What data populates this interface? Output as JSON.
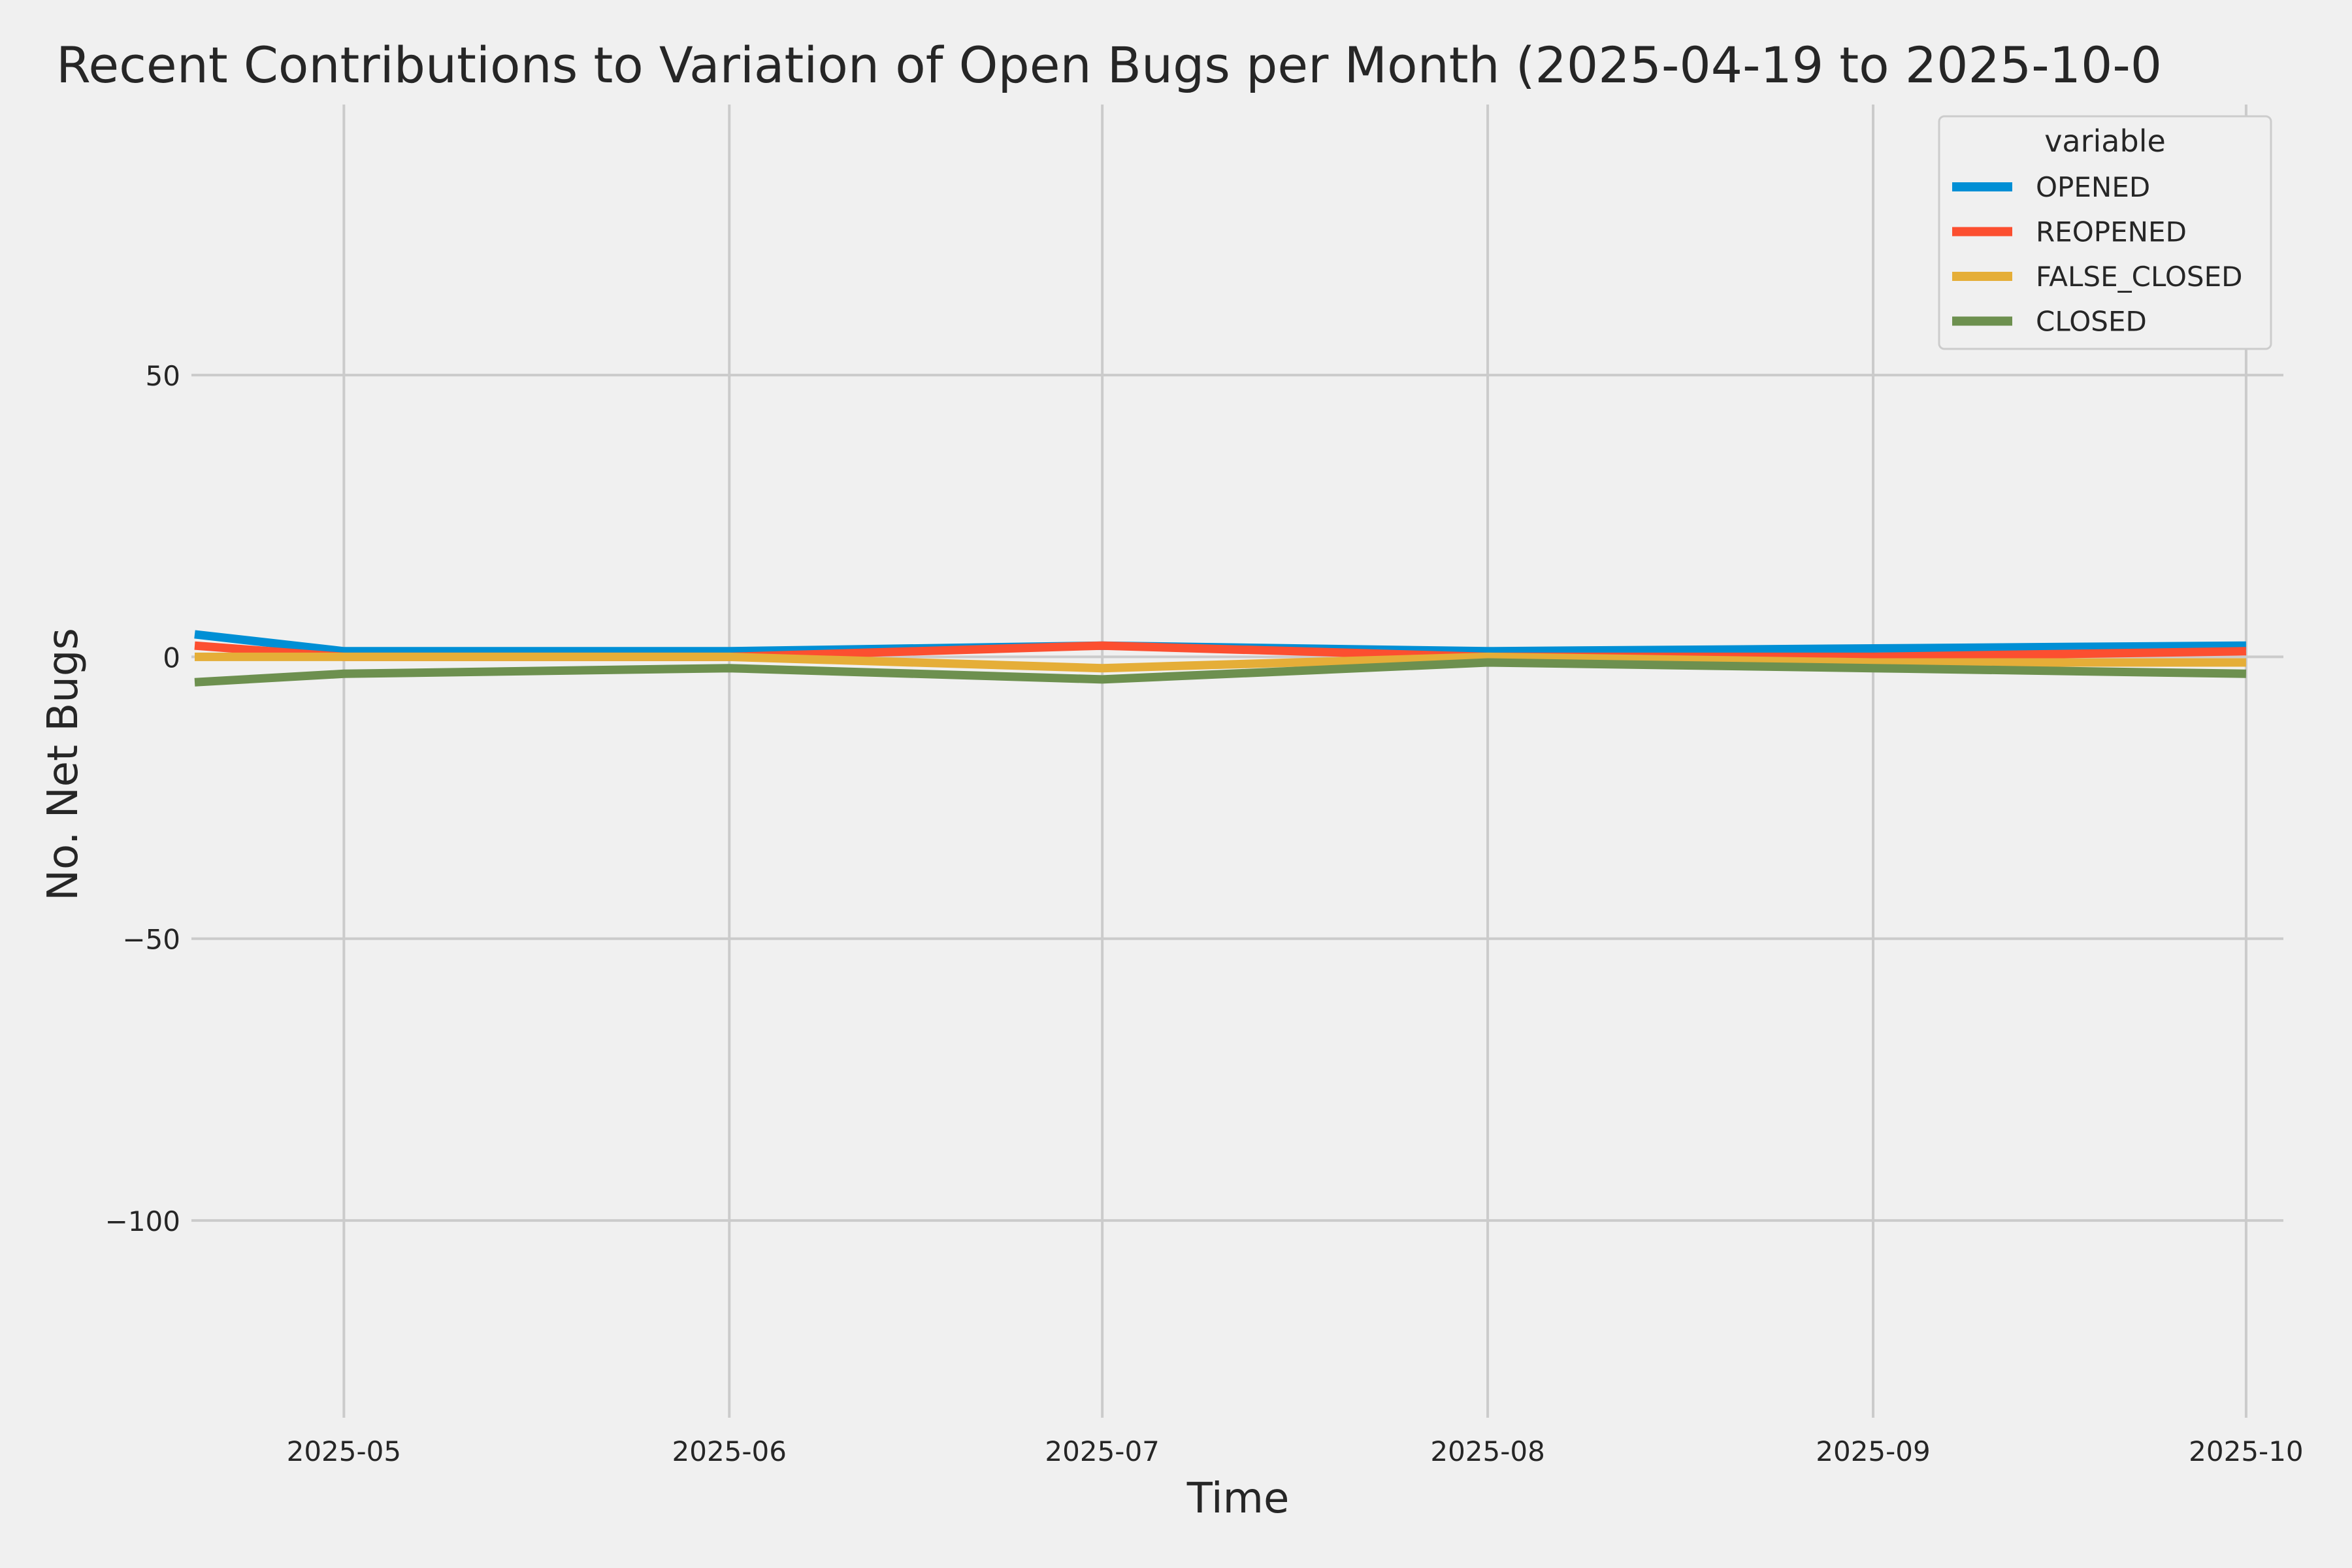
{
  "chart_data": {
    "type": "line",
    "title": "Recent Contributions to Variation of Open Bugs per Month (2025-04-19 to 2025-10-0",
    "xlabel": "Time",
    "ylabel": "No. Net Bugs",
    "x_ticks": [
      "2025-05",
      "2025-06",
      "2025-07",
      "2025-08",
      "2025-09",
      "2025-10"
    ],
    "y_ticks": [
      50,
      0,
      -50,
      -100
    ],
    "y_tick_labels": [
      "50",
      "0",
      "−50",
      "−100"
    ],
    "ylim": [
      -135,
      98
    ],
    "xlim": [
      "2025-04-19",
      "2025-10-04"
    ],
    "grid": true,
    "legend": {
      "title": "variable",
      "placement": "top-right"
    },
    "x": [
      "2025-04-19",
      "2025-05-01",
      "2025-06-01",
      "2025-07-01",
      "2025-08-01",
      "2025-09-01",
      "2025-10-01"
    ],
    "series": [
      {
        "name": "OPENED",
        "color": "#008fd5",
        "values": [
          4,
          1,
          1,
          2,
          1,
          1.5,
          2
        ]
      },
      {
        "name": "REOPENED",
        "color": "#fc4f30",
        "values": [
          2,
          0,
          0,
          2,
          0,
          0,
          1
        ]
      },
      {
        "name": "FALSE_CLOSED",
        "color": "#e5ae38",
        "values": [
          0,
          0,
          0,
          -2,
          0,
          -1,
          -1
        ]
      },
      {
        "name": "CLOSED",
        "color": "#6d904f",
        "values": [
          -4.5,
          -3,
          -2,
          -4,
          -1,
          -2,
          -3
        ]
      }
    ]
  }
}
